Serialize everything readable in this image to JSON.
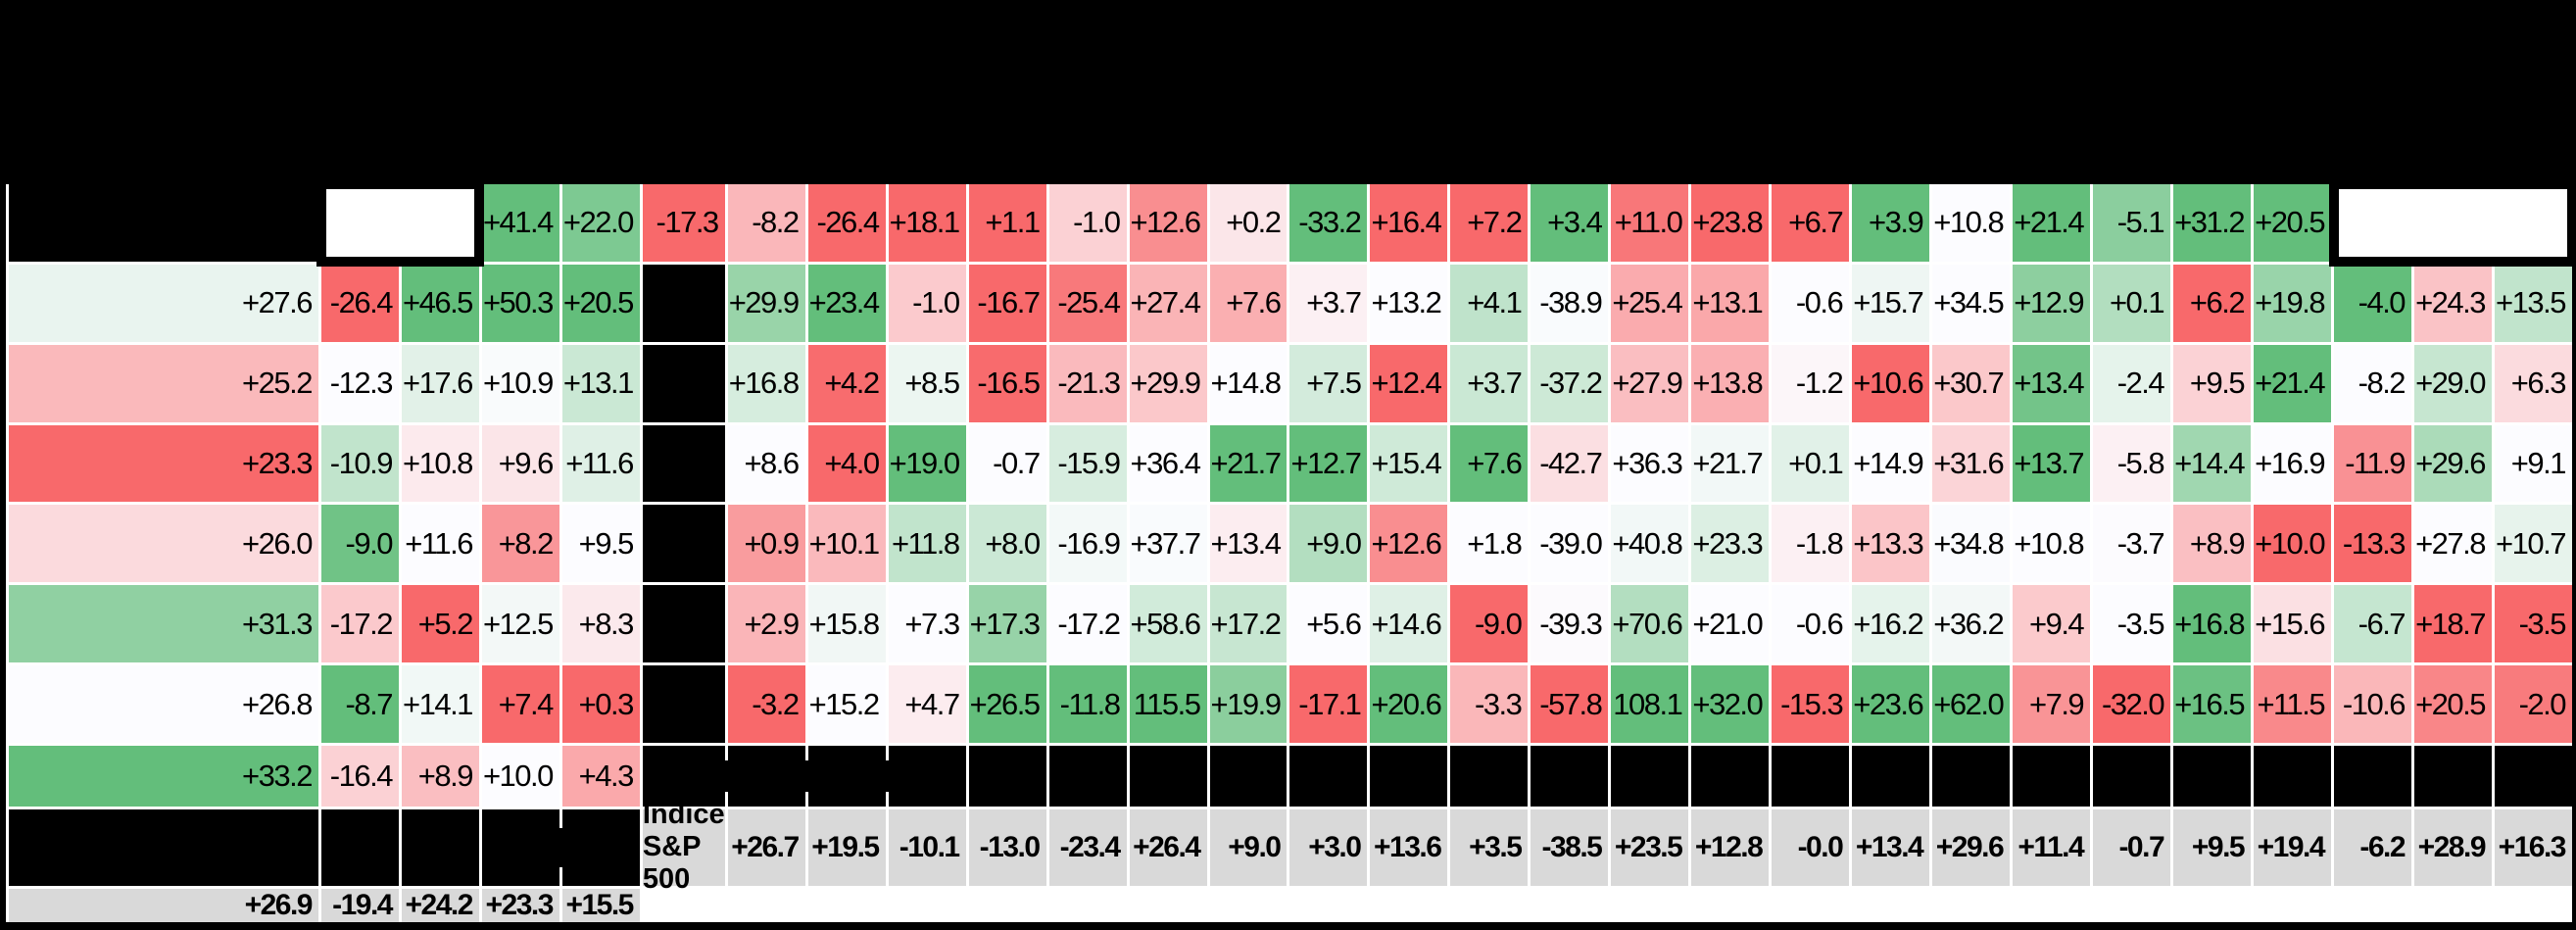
{
  "chart_data": {
    "type": "heatmap",
    "columns": 28,
    "description_note": "Annual return heatmap; 7 data rows with redacted (black) labels, colored per-column red-white-green scale; bold gray summary row.",
    "rows": [
      {
        "label": "",
        "values": [
          "+41.4",
          "+22.0",
          "-17.3",
          "-8.2",
          "-26.4",
          "+18.1",
          "+1.1",
          "-1.0",
          "+12.6",
          "+0.2",
          "-33.2",
          "+16.4",
          "+7.2",
          "+3.4",
          "+11.0",
          "+23.8",
          "+6.7",
          "+3.9",
          "+10.8",
          "+21.4",
          "-5.1",
          "+31.2",
          "+20.5",
          "+27.6",
          "-26.4",
          "+46.5",
          "+50.3",
          "+20.5"
        ]
      },
      {
        "label": "",
        "values": [
          "+29.9",
          "+23.4",
          "-1.0",
          "-16.7",
          "-25.4",
          "+27.4",
          "+7.6",
          "+3.7",
          "+13.2",
          "+4.1",
          "-38.9",
          "+25.4",
          "+13.1",
          "-0.6",
          "+15.7",
          "+34.5",
          "+12.9",
          "+0.1",
          "+6.2",
          "+19.8",
          "-4.0",
          "+24.3",
          "+13.5",
          "+25.2",
          "-12.3",
          "+17.6",
          "+10.9",
          "+13.1"
        ]
      },
      {
        "label": "",
        "values": [
          "+16.8",
          "+4.2",
          "+8.5",
          "-16.5",
          "-21.3",
          "+29.9",
          "+14.8",
          "+7.5",
          "+12.4",
          "+3.7",
          "-37.2",
          "+27.9",
          "+13.8",
          "-1.2",
          "+10.6",
          "+30.7",
          "+13.4",
          "-2.4",
          "+9.5",
          "+21.4",
          "-8.2",
          "+29.0",
          "+6.3",
          "+23.3",
          "-10.9",
          "+10.8",
          "+9.6",
          "+11.6"
        ]
      },
      {
        "label": "",
        "values": [
          "+8.6",
          "+4.0",
          "+19.0",
          "-0.7",
          "-15.9",
          "+36.4",
          "+21.7",
          "+12.7",
          "+15.4",
          "+7.6",
          "-42.7",
          "+36.3",
          "+21.7",
          "+0.1",
          "+14.9",
          "+31.6",
          "+13.7",
          "-5.8",
          "+14.4",
          "+16.9",
          "-11.9",
          "+29.6",
          "+9.1",
          "+26.0",
          "-9.0",
          "+11.6",
          "+8.2",
          "+9.5"
        ]
      },
      {
        "label": "",
        "values": [
          "+0.9",
          "+10.1",
          "+11.8",
          "+8.0",
          "-16.9",
          "+37.7",
          "+13.4",
          "+9.0",
          "+12.6",
          "+1.8",
          "-39.0",
          "+40.8",
          "+23.3",
          "-1.8",
          "+13.3",
          "+34.8",
          "+10.8",
          "-3.7",
          "+8.9",
          "+10.0",
          "-13.3",
          "+27.8",
          "+10.7",
          "+31.3",
          "-17.2",
          "+5.2",
          "+12.5",
          "+8.3"
        ]
      },
      {
        "label": "",
        "values": [
          "+2.9",
          "+15.8",
          "+7.3",
          "+17.3",
          "-17.2",
          "+58.6",
          "+17.2",
          "+5.6",
          "+14.6",
          "-9.0",
          "-39.3",
          "+70.6",
          "+21.0",
          "-0.6",
          "+16.2",
          "+36.2",
          "+9.4",
          "-3.5",
          "+16.8",
          "+15.6",
          "-6.7",
          "+18.7",
          "-3.5",
          "+26.8",
          "-8.7",
          "+14.1",
          "+7.4",
          "+0.3"
        ]
      },
      {
        "label": "",
        "values": [
          "-3.2",
          "+15.2",
          "+4.7",
          "+26.5",
          "-11.8",
          "115.5",
          "+19.9",
          "-17.1",
          "+20.6",
          "-3.3",
          "-57.8",
          "108.1",
          "+32.0",
          "-15.3",
          "+23.6",
          "+62.0",
          "+7.9",
          "-32.0",
          "+16.5",
          "+11.5",
          "-10.6",
          "+20.5",
          "-2.0",
          "+33.2",
          "-16.4",
          "+8.9",
          "+10.0",
          "+4.3"
        ]
      }
    ],
    "summary_row": {
      "label": "Indice S&P 500",
      "values": [
        "+26.7",
        "+19.5",
        "-10.1",
        "-13.0",
        "-23.4",
        "+26.4",
        "+9.0",
        "+3.0",
        "+13.6",
        "+3.5",
        "-38.5",
        "+23.5",
        "+12.8",
        "-0.0",
        "+13.4",
        "+29.6",
        "+11.4",
        "-0.7",
        "+9.5",
        "+19.4",
        "-6.2",
        "+28.9",
        "+16.3",
        "+26.9",
        "-19.4",
        "+24.2",
        "+23.3",
        "+15.5"
      ]
    },
    "color_scale": {
      "scope": "per-column",
      "min_color": "#F8696B",
      "mid_color": "#FCFCFF",
      "max_color": "#63BE7B",
      "midpoint": "median"
    },
    "colors": {
      "background": "#000000",
      "grid_lines": "#FFFFFF",
      "summary_row_bg": "#D9D9D9",
      "text": "#000000"
    },
    "highlights": [
      {
        "row": 0,
        "col_start": 0,
        "col_end": 1
      },
      {
        "row": 0,
        "col_start": 25,
        "col_end": 27
      }
    ],
    "dashed_year_separators": [
      0,
      1,
      2,
      27
    ]
  }
}
